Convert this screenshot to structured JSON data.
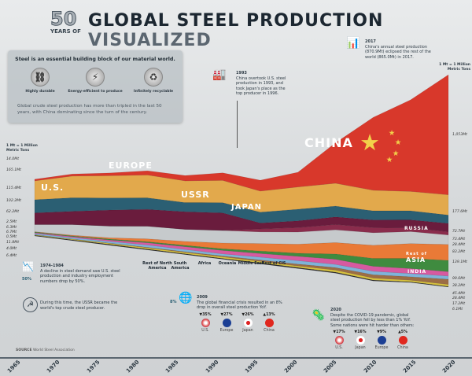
{
  "header": {
    "fifty": "50",
    "years_of": "YEARS OF",
    "title_main": "GLOBAL STEEL PRODUCTION",
    "title_accent": "VISUALIZED"
  },
  "intro": {
    "heading": "Steel is an essential building block of our material world.",
    "features": [
      {
        "label": "Highly durable",
        "icon": "chain-link-icon"
      },
      {
        "label": "Energy-efficient to produce",
        "icon": "lightning-icon"
      },
      {
        "label": "Infinitely recyclable",
        "icon": "recycle-icon"
      }
    ],
    "body": "Global crude steel production has more than tripled in the last 50 years, with China dominating since the turn of the century."
  },
  "unit_note": "1 Mt = 1 Million Metric Tons",
  "annotations": {
    "a1993": {
      "year": "1993",
      "text": "China overtook U.S. steel production in 1993, and took Japan's place as the top producer in 1996."
    },
    "a2017": {
      "year": "2017",
      "text": "China's annual steel production (870.9Mt) eclipsed the rest of the world (865.0Mt) in 2017."
    },
    "a1974": {
      "year": "1974-1984",
      "pct": "50%",
      "text": "A decline in steel demand saw U.S. steel production and industry employment numbers drop by 50%."
    },
    "ussr": {
      "text": "During this time, the USSR became the world's top crude steel producer."
    },
    "a2009": {
      "year": "2009",
      "pct": "8%",
      "text": "The global financial crisis resulted in an 8% drop in overall steel production YoY.",
      "changes": [
        {
          "country": "U.S.",
          "change": "▼35%"
        },
        {
          "country": "Europe",
          "change": "▼27%"
        },
        {
          "country": "Japan",
          "change": "▼26%"
        },
        {
          "country": "China",
          "change": "▲13%"
        }
      ]
    },
    "a2020": {
      "year": "2020",
      "text": "Despite the COVID-19 pandemic, global steel production fell by less than 1% YoY. Some nations were hit harder than others:",
      "changes": [
        {
          "country": "U.S.",
          "change": "▼17%"
        },
        {
          "country": "Japan",
          "change": "▼16%"
        },
        {
          "country": "Europe",
          "change": "▼9%"
        },
        {
          "country": "China",
          "change": "▲5%"
        }
      ]
    }
  },
  "region_labels": [
    "Rest of North America",
    "South America",
    "Africa",
    "Oceania",
    "Middle East",
    "Rest of CIS"
  ],
  "big_labels": {
    "china": "CHINA",
    "europe": "EUROPE",
    "us": "U.S.",
    "ussr": "USSR",
    "japan": "JAPAN",
    "russia": "RUSSIA",
    "rest_of_asia_small": "Rest of",
    "rest_of_asia": "ASIA",
    "india": "INDIA"
  },
  "left_values": [
    "14.0Mt",
    "165.1Mt",
    "115.4Mt",
    "102.2Mt",
    "62.2Mt",
    "2.5Mt",
    "6.3Mt",
    "6.7Mt",
    "0.5Mt",
    "11.8Mt",
    "4.0Mt",
    "6.4Mt"
  ],
  "right_values": [
    "1,053Mt",
    "177.6Mt",
    "72.7Mt",
    "73.4Mt",
    "28.4Mt",
    "83.2Mt",
    "139.1Mt",
    "99.6Mt",
    "38.2Mt",
    "45.4Mt",
    "28.4Mt",
    "17.2Mt",
    "6.1Mt"
  ],
  "source": {
    "label": "SOURCE",
    "value": "World Steel Association"
  },
  "chart_data": {
    "type": "area",
    "title": "50 Years of Global Steel Production Visualized",
    "x": [
      1965,
      1970,
      1975,
      1980,
      1985,
      1990,
      1995,
      2000,
      2005,
      2010,
      2015,
      2020
    ],
    "xticks": [
      "1965",
      "1970",
      "1975",
      "1980",
      "1985",
      "1990",
      "1995",
      "2000",
      "2005",
      "2010",
      "2015",
      "2020"
    ],
    "ylabel": "Mt",
    "series": [
      {
        "name": "Oceania",
        "color": "#2e2e30",
        "values": [
          6.4,
          7,
          8,
          8,
          7,
          7,
          9,
          9,
          9,
          8,
          6,
          6.1
        ]
      },
      {
        "name": "Africa",
        "color": "#d8c23e",
        "values": [
          4.0,
          6,
          9,
          11,
          12,
          14,
          13,
          13,
          18,
          17,
          14,
          17.2
        ]
      },
      {
        "name": "Middle East",
        "color": "#9c6d45",
        "values": [
          0.5,
          1,
          2,
          4,
          6,
          8,
          12,
          17,
          22,
          30,
          30,
          45.4
        ]
      },
      {
        "name": "Rest of North America",
        "color": "#7fb3d9",
        "values": [
          11.8,
          13,
          15,
          20,
          20,
          18,
          25,
          30,
          28,
          30,
          28,
          28.4
        ]
      },
      {
        "name": "South America",
        "color": "#d75aa0",
        "values": [
          6.7,
          9,
          12,
          20,
          24,
          30,
          32,
          38,
          45,
          44,
          44,
          38.2
        ]
      },
      {
        "name": "India",
        "color": "#3f8b3f",
        "values": [
          6.3,
          6,
          8,
          9,
          12,
          15,
          22,
          27,
          46,
          69,
          89,
          99.6
        ]
      },
      {
        "name": "Rest of Asia",
        "color": "#e97a37",
        "values": [
          2.5,
          6,
          12,
          25,
          35,
          50,
          65,
          80,
          100,
          115,
          130,
          139.1
        ]
      },
      {
        "name": "Japan",
        "color": "#c6cacc",
        "values": [
          62.2,
          93,
          102,
          111,
          105,
          110,
          102,
          106,
          112,
          110,
          105,
          83.2
        ]
      },
      {
        "name": "Rest of CIS",
        "color": "#8a2c4c",
        "values": [
          0,
          0,
          0,
          0,
          0,
          0,
          27,
          39,
          47,
          45,
          32,
          28.4
        ]
      },
      {
        "name": "USSR / Russia",
        "color": "#6a1c3d",
        "values": [
          102.2,
          116,
          141,
          148,
          155,
          154,
          51,
          59,
          66,
          67,
          71,
          73.4
        ]
      },
      {
        "name": "U.S.",
        "color": "#2b5f73",
        "values": [
          115.4,
          119,
          106,
          101,
          80,
          90,
          95,
          102,
          95,
          80,
          79,
          72.7
        ]
      },
      {
        "name": "Europe",
        "color": "#e2a94c",
        "values": [
          165.1,
          190,
          195,
          200,
          190,
          195,
          185,
          195,
          200,
          180,
          170,
          177.6
        ]
      },
      {
        "name": "China",
        "color": "#d8382b",
        "values": [
          14.0,
          18,
          24,
          37,
          47,
          66,
          95,
          129,
          355,
          639,
          804,
          1053
        ]
      }
    ]
  }
}
